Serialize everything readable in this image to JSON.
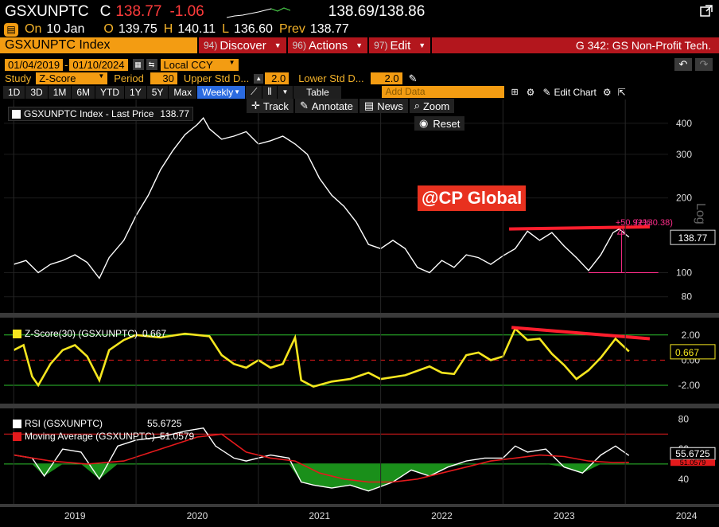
{
  "ticker": {
    "symbol": "GSXUNPTC",
    "flag": "C",
    "last": "138.77",
    "change": "-1.06",
    "bid_ask": "138.69/138.86"
  },
  "quote": {
    "on_label": "On",
    "date": "10 Jan",
    "open_label": "O",
    "open": "139.75",
    "high_label": "H",
    "high": "140.11",
    "low_label": "L",
    "low": "136.60",
    "prev_label": "Prev",
    "prev": "138.77"
  },
  "header": {
    "title": "GSXUNPTC Index",
    "discover": "Discover",
    "discover_key": "94)",
    "actions": "Actions",
    "actions_key": "96)",
    "edit": "Edit",
    "edit_key": "97)",
    "page": "G 342: GS Non-Profit Tech."
  },
  "range": {
    "start": "01/04/2019",
    "end": "01/10/2024",
    "currency": "Local CCY"
  },
  "study": {
    "label": "Study",
    "value": "Z-Score",
    "period_label": "Period",
    "period": "30",
    "upper_label": "Upper Std D...",
    "upper": "2.0",
    "lower_label": "Lower Std D...",
    "lower": "2.0"
  },
  "toolbar": {
    "ranges": [
      "1D",
      "3D",
      "1M",
      "6M",
      "YTD",
      "1Y",
      "5Y",
      "Max"
    ],
    "frequency": "Weekly",
    "table": "Table",
    "add_data_placeholder": "Add Data",
    "edit_chart": "Edit Chart"
  },
  "chart_tools": {
    "track": "Track",
    "annotate": "Annotate",
    "news": "News",
    "zoom": "Zoom",
    "reset": "Reset"
  },
  "panels": {
    "price": {
      "legend": "GSXUNPTC Index - Last Price",
      "legend_value": "138.77",
      "last_tag": "138.77",
      "scale_label": "Log",
      "annotation_pct": "+50.92%",
      "annotation_abs": "(+130.38)",
      "watermark": "@CP Global",
      "axis_ticks": [
        "400",
        "300",
        "200",
        "100",
        "80"
      ]
    },
    "zscore": {
      "legend": "Z-Score(30) (GSXUNPTC)",
      "legend_value": "0.667",
      "last_tag": "0.667",
      "axis_ticks": [
        "2.00",
        "0.00",
        "-2.00"
      ]
    },
    "rsi": {
      "legend": "RSI (GSXUNPTC)",
      "legend_value": "55.6725",
      "ma_legend": "Moving Average (GSXUNPTC)",
      "ma_value": "51.0579",
      "last_tag": "55.6725",
      "ma_tag": "51.0579",
      "axis_ticks": [
        "80",
        "60",
        "40"
      ]
    }
  },
  "x_axis": [
    "2019",
    "2020",
    "2021",
    "2022",
    "2023",
    "2024"
  ],
  "colors": {
    "orange": "#f39c12",
    "red": "#b3161d",
    "yellow": "#f5e61f",
    "green": "#1a8f1a",
    "magenta": "#ff2d8a"
  },
  "chart_data": {
    "type": "line",
    "x_labels": [
      "2019",
      "2020",
      "2021",
      "2022",
      "2023",
      "2024"
    ],
    "scale": "log",
    "price": [
      [
        2019.0,
        108
      ],
      [
        2019.1,
        112
      ],
      [
        2019.2,
        100
      ],
      [
        2019.3,
        108
      ],
      [
        2019.4,
        112
      ],
      [
        2019.5,
        118
      ],
      [
        2019.6,
        110
      ],
      [
        2019.7,
        95
      ],
      [
        2019.78,
        115
      ],
      [
        2019.9,
        135
      ],
      [
        2020.0,
        170
      ],
      [
        2020.1,
        205
      ],
      [
        2020.2,
        260
      ],
      [
        2020.3,
        310
      ],
      [
        2020.4,
        360
      ],
      [
        2020.5,
        395
      ],
      [
        2020.55,
        420
      ],
      [
        2020.6,
        380
      ],
      [
        2020.7,
        345
      ],
      [
        2020.8,
        355
      ],
      [
        2020.9,
        370
      ],
      [
        2021.0,
        330
      ],
      [
        2021.1,
        340
      ],
      [
        2021.2,
        355
      ],
      [
        2021.3,
        330
      ],
      [
        2021.4,
        300
      ],
      [
        2021.5,
        240
      ],
      [
        2021.6,
        205
      ],
      [
        2021.7,
        185
      ],
      [
        2021.8,
        160
      ],
      [
        2021.9,
        130
      ],
      [
        2022.0,
        125
      ],
      [
        2022.1,
        135
      ],
      [
        2022.2,
        125
      ],
      [
        2022.3,
        105
      ],
      [
        2022.4,
        100
      ],
      [
        2022.5,
        112
      ],
      [
        2022.6,
        105
      ],
      [
        2022.7,
        118
      ],
      [
        2022.8,
        115
      ],
      [
        2022.9,
        108
      ],
      [
        2023.0,
        117
      ],
      [
        2023.1,
        125
      ],
      [
        2023.2,
        147
      ],
      [
        2023.3,
        135
      ],
      [
        2023.4,
        145
      ],
      [
        2023.5,
        128
      ],
      [
        2023.6,
        115
      ],
      [
        2023.7,
        102
      ],
      [
        2023.8,
        118
      ],
      [
        2023.9,
        145
      ],
      [
        2023.95,
        150
      ],
      [
        2024.03,
        139
      ]
    ],
    "zscore": [
      [
        2019.0,
        0.8
      ],
      [
        2019.08,
        1.2
      ],
      [
        2019.15,
        -1.3
      ],
      [
        2019.2,
        -2.0
      ],
      [
        2019.3,
        -0.3
      ],
      [
        2019.4,
        0.8
      ],
      [
        2019.5,
        1.2
      ],
      [
        2019.6,
        0.3
      ],
      [
        2019.7,
        -1.6
      ],
      [
        2019.78,
        0.8
      ],
      [
        2019.9,
        1.6
      ],
      [
        2020.0,
        2.0
      ],
      [
        2020.2,
        1.8
      ],
      [
        2020.4,
        2.1
      ],
      [
        2020.6,
        1.9
      ],
      [
        2020.7,
        0.4
      ],
      [
        2020.8,
        -0.3
      ],
      [
        2020.9,
        -0.6
      ],
      [
        2021.0,
        0.0
      ],
      [
        2021.1,
        -0.6
      ],
      [
        2021.2,
        -0.3
      ],
      [
        2021.3,
        1.8
      ],
      [
        2021.35,
        -1.6
      ],
      [
        2021.45,
        -2.1
      ],
      [
        2021.6,
        -1.7
      ],
      [
        2021.75,
        -1.5
      ],
      [
        2021.9,
        -1.0
      ],
      [
        2022.0,
        -1.5
      ],
      [
        2022.2,
        -1.2
      ],
      [
        2022.4,
        -0.5
      ],
      [
        2022.5,
        -1.0
      ],
      [
        2022.6,
        -1.1
      ],
      [
        2022.7,
        0.4
      ],
      [
        2022.8,
        0.6
      ],
      [
        2022.9,
        0.0
      ],
      [
        2023.0,
        0.3
      ],
      [
        2023.1,
        2.5
      ],
      [
        2023.2,
        1.6
      ],
      [
        2023.3,
        1.7
      ],
      [
        2023.4,
        0.5
      ],
      [
        2023.5,
        -0.4
      ],
      [
        2023.6,
        -1.5
      ],
      [
        2023.7,
        -0.8
      ],
      [
        2023.8,
        0.2
      ],
      [
        2023.92,
        1.7
      ],
      [
        2024.03,
        0.7
      ]
    ],
    "rsi": [
      [
        2019.0,
        56
      ],
      [
        2019.15,
        54
      ],
      [
        2019.25,
        42
      ],
      [
        2019.4,
        60
      ],
      [
        2019.55,
        58
      ],
      [
        2019.7,
        40
      ],
      [
        2019.85,
        62
      ],
      [
        2020.0,
        66
      ],
      [
        2020.2,
        68
      ],
      [
        2020.4,
        72
      ],
      [
        2020.55,
        74
      ],
      [
        2020.65,
        62
      ],
      [
        2020.8,
        54
      ],
      [
        2020.9,
        52
      ],
      [
        2021.1,
        56
      ],
      [
        2021.25,
        54
      ],
      [
        2021.35,
        38
      ],
      [
        2021.45,
        36
      ],
      [
        2021.6,
        34
      ],
      [
        2021.75,
        36
      ],
      [
        2021.9,
        32
      ],
      [
        2022.1,
        38
      ],
      [
        2022.25,
        46
      ],
      [
        2022.4,
        42
      ],
      [
        2022.55,
        48
      ],
      [
        2022.7,
        52
      ],
      [
        2022.85,
        54
      ],
      [
        2023.0,
        54
      ],
      [
        2023.1,
        62
      ],
      [
        2023.2,
        58
      ],
      [
        2023.35,
        60
      ],
      [
        2023.5,
        48
      ],
      [
        2023.65,
        44
      ],
      [
        2023.8,
        56
      ],
      [
        2023.92,
        62
      ],
      [
        2024.03,
        55.7
      ]
    ],
    "rsi_ma": [
      [
        2019.0,
        56
      ],
      [
        2019.3,
        52
      ],
      [
        2019.6,
        50
      ],
      [
        2019.9,
        52
      ],
      [
        2020.2,
        60
      ],
      [
        2020.5,
        68
      ],
      [
        2020.7,
        70
      ],
      [
        2020.9,
        58
      ],
      [
        2021.1,
        54
      ],
      [
        2021.3,
        52
      ],
      [
        2021.5,
        44
      ],
      [
        2021.7,
        40
      ],
      [
        2021.9,
        38
      ],
      [
        2022.1,
        38
      ],
      [
        2022.3,
        40
      ],
      [
        2022.5,
        44
      ],
      [
        2022.7,
        48
      ],
      [
        2022.9,
        52
      ],
      [
        2023.1,
        54
      ],
      [
        2023.3,
        56
      ],
      [
        2023.5,
        55
      ],
      [
        2023.7,
        52
      ],
      [
        2023.9,
        51
      ],
      [
        2024.03,
        51.1
      ]
    ]
  }
}
